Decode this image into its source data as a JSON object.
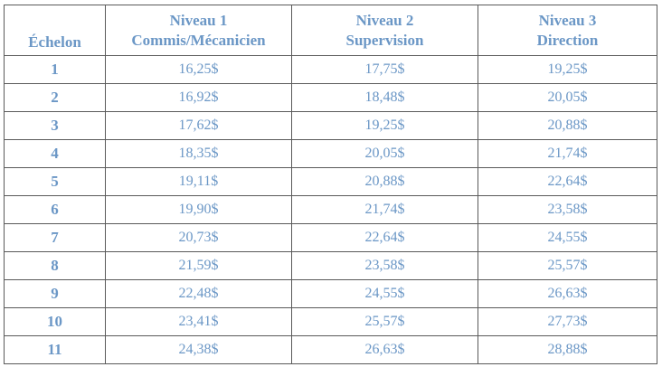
{
  "table": {
    "headers": {
      "echelon": "Échelon",
      "niveau1_title": "Niveau 1",
      "niveau1_sub": "Commis/Mécanicien",
      "niveau2_title": "Niveau 2",
      "niveau2_sub": "Supervision",
      "niveau3_title": "Niveau 3",
      "niveau3_sub": "Direction"
    },
    "rows": [
      {
        "echelon": "1",
        "n1": "16,25$",
        "n2": "17,75$",
        "n3": "19,25$"
      },
      {
        "echelon": "2",
        "n1": "16,92$",
        "n2": "18,48$",
        "n3": "20,05$"
      },
      {
        "echelon": "3",
        "n1": "17,62$",
        "n2": "19,25$",
        "n3": "20,88$"
      },
      {
        "echelon": "4",
        "n1": "18,35$",
        "n2": "20,05$",
        "n3": "21,74$"
      },
      {
        "echelon": "5",
        "n1": "19,11$",
        "n2": "20,88$",
        "n3": "22,64$"
      },
      {
        "echelon": "6",
        "n1": "19,90$",
        "n2": "21,74$",
        "n3": "23,58$"
      },
      {
        "echelon": "7",
        "n1": "20,73$",
        "n2": "22,64$",
        "n3": "24,55$"
      },
      {
        "echelon": "8",
        "n1": "21,59$",
        "n2": "23,58$",
        "n3": "25,57$"
      },
      {
        "echelon": "9",
        "n1": "22,48$",
        "n2": "24,55$",
        "n3": "26,63$"
      },
      {
        "echelon": "10",
        "n1": "23,41$",
        "n2": "25,57$",
        "n3": "27,73$"
      },
      {
        "echelon": "11",
        "n1": "24,38$",
        "n2": "26,63$",
        "n3": "28,88$"
      }
    ]
  },
  "colors": {
    "text": "#6b97c6",
    "border": "#5a5a5a"
  }
}
